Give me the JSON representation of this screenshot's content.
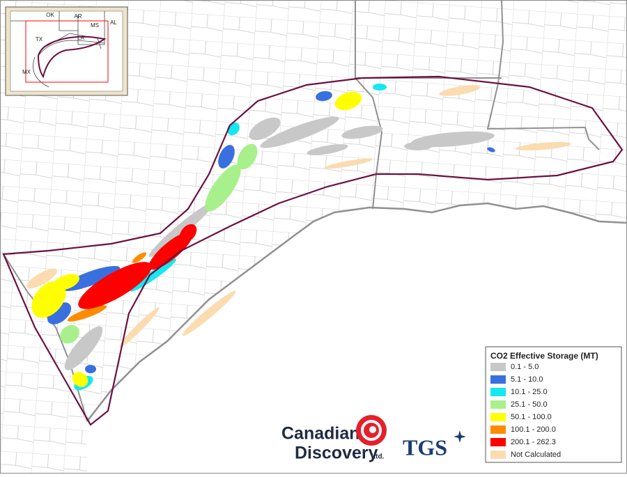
{
  "inset_map": {
    "labels": [
      "OK",
      "AR",
      "MS",
      "AL",
      "TX",
      "LA",
      "MX"
    ]
  },
  "legend": {
    "title": "CO2 Effective Storage (MT)",
    "items": [
      {
        "label": "0.1 - 5.0",
        "color": "#c8c8c8"
      },
      {
        "label": "5.1 - 10.0",
        "color": "#3a6fe0"
      },
      {
        "label": "10.1 - 25.0",
        "color": "#14e8f0"
      },
      {
        "label": "25.1 - 50.0",
        "color": "#a8f08c"
      },
      {
        "label": "50.1 - 100.0",
        "color": "#ffff00"
      },
      {
        "label": "100.1 - 200.0",
        "color": "#ff8c00"
      },
      {
        "label": "200.1 - 262.3",
        "color": "#ff0000"
      },
      {
        "label": "Not Calculated",
        "color": "#fbdcb0"
      }
    ]
  },
  "logos": {
    "canadian_discovery": [
      "Canadian",
      "Discovery",
      "Ltd."
    ],
    "tgs": "TGS"
  }
}
